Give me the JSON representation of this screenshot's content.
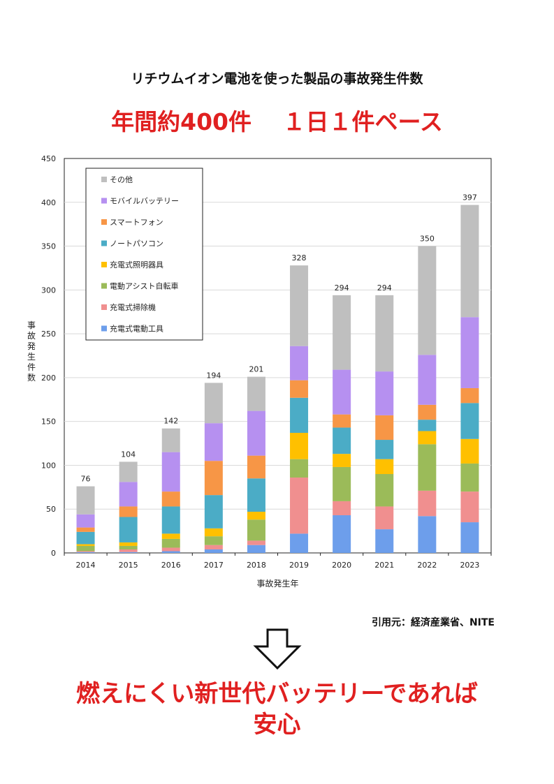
{
  "title": "リチウムイオン電池を使った製品の事故発生件数",
  "subtitle": "年間約400件　 １日１件ペース",
  "source": "引用元：経済産業省、NITE",
  "conclusion": {
    "line1": "燃えにくい新世代バッテリーであれば",
    "line2": "安心"
  },
  "icons": {
    "arrow": "down-arrow-outline-icon"
  },
  "chart_data": {
    "type": "bar",
    "stacked": true,
    "categories": [
      "2014",
      "2015",
      "2016",
      "2017",
      "2018",
      "2019",
      "2020",
      "2021",
      "2022",
      "2023"
    ],
    "totals": [
      76,
      104,
      142,
      194,
      201,
      328,
      294,
      294,
      350,
      397
    ],
    "xlabel": "事故発生年",
    "ylabel": "事故発生件数",
    "ylim": [
      0,
      450
    ],
    "yticks": [
      0,
      50,
      100,
      150,
      200,
      250,
      300,
      350,
      400,
      450
    ],
    "grid": true,
    "legend_position": "top-left",
    "series": [
      {
        "name": "充電式電動工具",
        "color": "#6d9eeb",
        "values": [
          1,
          1,
          2,
          4,
          9,
          22,
          43,
          27,
          42,
          35
        ]
      },
      {
        "name": "充電式掃除機",
        "color": "#f08f8f",
        "values": [
          1,
          3,
          4,
          5,
          5,
          64,
          16,
          26,
          29,
          35
        ]
      },
      {
        "name": "電動アシスト自転車",
        "color": "#9bbb59",
        "values": [
          6,
          4,
          10,
          10,
          24,
          21,
          39,
          37,
          53,
          32
        ]
      },
      {
        "name": "充電式照明器具",
        "color": "#ffc000",
        "values": [
          2,
          4,
          6,
          9,
          9,
          30,
          15,
          17,
          15,
          28
        ]
      },
      {
        "name": "ノートパソコン",
        "color": "#4bacc6",
        "values": [
          14,
          29,
          31,
          38,
          38,
          40,
          30,
          22,
          13,
          41
        ]
      },
      {
        "name": "スマートフォン",
        "color": "#f79646",
        "values": [
          5,
          12,
          17,
          39,
          26,
          20,
          15,
          28,
          17,
          17
        ]
      },
      {
        "name": "モバイルバッテリー",
        "color": "#b690f0",
        "values": [
          15,
          28,
          45,
          43,
          51,
          39,
          51,
          50,
          57,
          81
        ]
      },
      {
        "name": "その他",
        "color": "#bfbfbf",
        "values": [
          32,
          23,
          27,
          46,
          39,
          92,
          85,
          87,
          124,
          128
        ]
      }
    ]
  }
}
